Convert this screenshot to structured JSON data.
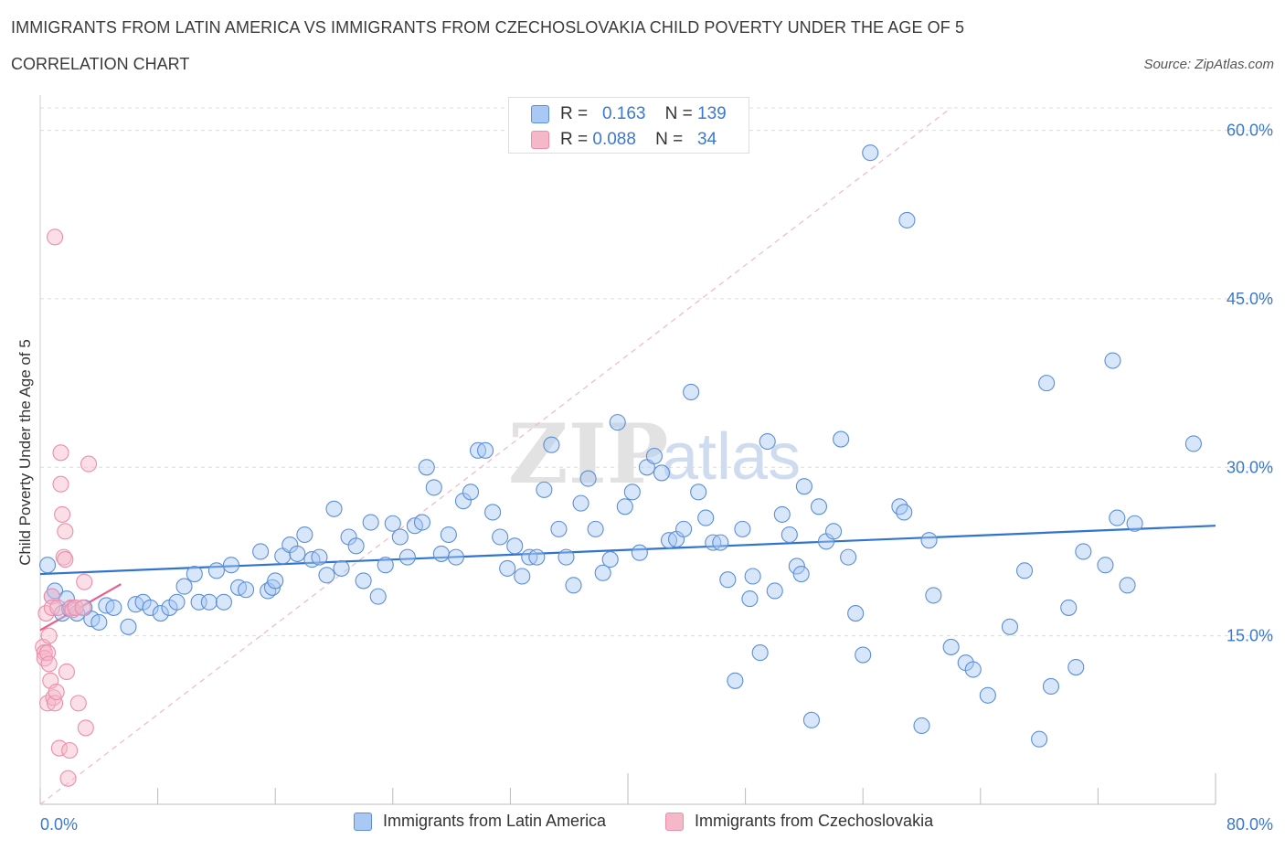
{
  "title": "IMMIGRANTS FROM LATIN AMERICA VS IMMIGRANTS FROM CZECHOSLOVAKIA CHILD POVERTY UNDER THE AGE OF 5",
  "subtitle": "CORRELATION CHART",
  "source": "Source: ZipAtlas.com",
  "watermark": {
    "zip": "ZIP",
    "atlas": "atlas"
  },
  "stats": [
    {
      "r_label": "R =",
      "r_value": "0.163",
      "n_label": "N =",
      "n_value": "139",
      "color": "#a9c8f3"
    },
    {
      "r_label": "R =",
      "r_value": "0.088",
      "n_label": "N =",
      "n_value": " 34",
      "color": "#f5b8c9"
    }
  ],
  "chart_data": {
    "type": "scatter",
    "ylabel": "Child Poverty Under the Age of 5",
    "xlim": [
      0,
      80
    ],
    "ylim": [
      0,
      62
    ],
    "x_tick_labels": [
      {
        "value": 0,
        "label": "0.0%"
      },
      {
        "value": 80,
        "label": "80.0%"
      }
    ],
    "y_tick_labels": [
      {
        "value": 15,
        "label": "15.0%"
      },
      {
        "value": 30,
        "label": "30.0%"
      },
      {
        "value": 45,
        "label": "45.0%"
      },
      {
        "value": 60,
        "label": "60.0%"
      }
    ],
    "grid": true,
    "legend_position": "bottom-center",
    "series": [
      {
        "name": "Immigrants from Latin America",
        "color": "#5b8fd8",
        "fill": "#a9c8f3",
        "trend": {
          "x": [
            0,
            80
          ],
          "y": [
            20.5,
            24.8
          ],
          "color": "#2f74d0"
        },
        "points": [
          [
            0.5,
            21.3
          ],
          [
            0.8,
            18.5
          ],
          [
            1.0,
            19.0
          ],
          [
            1.5,
            17.0
          ],
          [
            1.8,
            18.3
          ],
          [
            2.0,
            17.4
          ],
          [
            2.5,
            17.0
          ],
          [
            3.0,
            17.5
          ],
          [
            3.5,
            16.5
          ],
          [
            4.0,
            16.2
          ],
          [
            4.5,
            17.7
          ],
          [
            5.0,
            17.5
          ],
          [
            6.0,
            15.8
          ],
          [
            6.5,
            17.8
          ],
          [
            7.0,
            18.0
          ],
          [
            7.5,
            17.5
          ],
          [
            8.2,
            17.0
          ],
          [
            8.8,
            17.5
          ],
          [
            9.3,
            18.0
          ],
          [
            9.8,
            19.4
          ],
          [
            10.5,
            20.5
          ],
          [
            10.8,
            18.0
          ],
          [
            11.5,
            18.0
          ],
          [
            12.0,
            20.8
          ],
          [
            12.5,
            18.0
          ],
          [
            13.0,
            21.3
          ],
          [
            13.5,
            19.3
          ],
          [
            14.0,
            19.1
          ],
          [
            15.0,
            22.5
          ],
          [
            15.5,
            19.0
          ],
          [
            15.8,
            19.3
          ],
          [
            16.0,
            19.9
          ],
          [
            16.5,
            22.1
          ],
          [
            17.0,
            23.1
          ],
          [
            17.5,
            22.3
          ],
          [
            18.0,
            24.0
          ],
          [
            18.5,
            21.8
          ],
          [
            19.0,
            22.0
          ],
          [
            19.5,
            20.4
          ],
          [
            20.0,
            26.3
          ],
          [
            20.5,
            21.0
          ],
          [
            21.0,
            23.8
          ],
          [
            21.5,
            23.0
          ],
          [
            22.0,
            19.9
          ],
          [
            22.5,
            25.1
          ],
          [
            23.0,
            18.5
          ],
          [
            23.5,
            21.3
          ],
          [
            24.0,
            25.0
          ],
          [
            24.5,
            23.8
          ],
          [
            25.0,
            22.0
          ],
          [
            25.5,
            24.8
          ],
          [
            26.0,
            25.1
          ],
          [
            26.3,
            30.0
          ],
          [
            26.8,
            28.2
          ],
          [
            27.3,
            22.3
          ],
          [
            27.8,
            24.0
          ],
          [
            28.3,
            22.0
          ],
          [
            28.8,
            27.0
          ],
          [
            29.3,
            27.8
          ],
          [
            29.8,
            31.5
          ],
          [
            30.3,
            31.5
          ],
          [
            30.8,
            26.0
          ],
          [
            31.3,
            23.8
          ],
          [
            31.8,
            21.0
          ],
          [
            32.3,
            23.0
          ],
          [
            32.8,
            20.3
          ],
          [
            33.3,
            22.0
          ],
          [
            33.8,
            22.0
          ],
          [
            34.3,
            28.0
          ],
          [
            34.8,
            32.0
          ],
          [
            35.3,
            24.5
          ],
          [
            35.8,
            22.0
          ],
          [
            36.3,
            19.5
          ],
          [
            36.8,
            26.8
          ],
          [
            37.3,
            29.0
          ],
          [
            37.8,
            24.5
          ],
          [
            38.3,
            20.6
          ],
          [
            38.8,
            21.8
          ],
          [
            39.3,
            34.0
          ],
          [
            39.8,
            26.5
          ],
          [
            40.3,
            27.8
          ],
          [
            40.8,
            22.4
          ],
          [
            41.3,
            30.0
          ],
          [
            41.8,
            31.0
          ],
          [
            42.3,
            29.5
          ],
          [
            42.8,
            23.5
          ],
          [
            43.3,
            23.6
          ],
          [
            43.8,
            24.5
          ],
          [
            44.3,
            36.7
          ],
          [
            44.8,
            27.8
          ],
          [
            45.3,
            25.5
          ],
          [
            45.8,
            23.3
          ],
          [
            46.3,
            23.3
          ],
          [
            46.8,
            20.0
          ],
          [
            47.3,
            11.0
          ],
          [
            47.8,
            24.5
          ],
          [
            48.3,
            18.3
          ],
          [
            48.5,
            20.3
          ],
          [
            49.0,
            13.5
          ],
          [
            49.5,
            32.3
          ],
          [
            50.0,
            19.0
          ],
          [
            50.5,
            25.8
          ],
          [
            51.0,
            24.0
          ],
          [
            51.5,
            21.2
          ],
          [
            51.8,
            20.5
          ],
          [
            52.0,
            28.3
          ],
          [
            52.5,
            7.5
          ],
          [
            53.0,
            26.5
          ],
          [
            53.5,
            23.4
          ],
          [
            54.0,
            24.3
          ],
          [
            54.5,
            32.5
          ],
          [
            55.0,
            22.0
          ],
          [
            55.5,
            17.0
          ],
          [
            56.0,
            13.3
          ],
          [
            56.5,
            58.0
          ],
          [
            58.5,
            26.5
          ],
          [
            58.8,
            26.0
          ],
          [
            59.0,
            52.0
          ],
          [
            60.0,
            7.0
          ],
          [
            60.5,
            23.5
          ],
          [
            60.8,
            18.6
          ],
          [
            62.0,
            14.0
          ],
          [
            63.0,
            12.6
          ],
          [
            63.5,
            12.0
          ],
          [
            64.5,
            9.7
          ],
          [
            66.0,
            15.8
          ],
          [
            67.0,
            20.8
          ],
          [
            68.0,
            5.8
          ],
          [
            68.5,
            37.5
          ],
          [
            68.8,
            10.5
          ],
          [
            70.0,
            17.5
          ],
          [
            70.5,
            12.2
          ],
          [
            71.0,
            22.5
          ],
          [
            72.5,
            21.3
          ],
          [
            73.0,
            39.5
          ],
          [
            73.3,
            25.5
          ],
          [
            74.0,
            19.5
          ],
          [
            74.5,
            25.0
          ],
          [
            78.5,
            32.1
          ]
        ]
      },
      {
        "name": "Immigrants from Czechoslovakia",
        "color": "#ef8cab",
        "fill": "#f5b8c9",
        "trend": {
          "x": [
            0,
            5.5
          ],
          "y": [
            15.5,
            19.6
          ],
          "color": "#e8608d"
        },
        "points": [
          [
            0.2,
            14.0
          ],
          [
            0.3,
            13.5
          ],
          [
            0.3,
            13.0
          ],
          [
            0.4,
            17.0
          ],
          [
            0.5,
            13.5
          ],
          [
            0.5,
            9.0
          ],
          [
            0.6,
            15.0
          ],
          [
            0.6,
            12.5
          ],
          [
            0.7,
            11.0
          ],
          [
            0.8,
            18.5
          ],
          [
            0.8,
            17.5
          ],
          [
            0.9,
            9.5
          ],
          [
            1.0,
            50.5
          ],
          [
            1.0,
            9.0
          ],
          [
            1.1,
            10.0
          ],
          [
            1.2,
            17.5
          ],
          [
            1.3,
            5.0
          ],
          [
            1.4,
            28.5
          ],
          [
            1.4,
            31.3
          ],
          [
            1.5,
            25.8
          ],
          [
            1.6,
            22.0
          ],
          [
            1.7,
            24.3
          ],
          [
            1.7,
            21.8
          ],
          [
            1.8,
            11.8
          ],
          [
            1.9,
            2.3
          ],
          [
            2.0,
            4.8
          ],
          [
            2.1,
            17.5
          ],
          [
            2.2,
            17.3
          ],
          [
            2.4,
            17.5
          ],
          [
            2.6,
            9.0
          ],
          [
            2.9,
            17.5
          ],
          [
            3.0,
            19.8
          ],
          [
            3.1,
            6.8
          ],
          [
            3.3,
            30.3
          ]
        ]
      }
    ]
  }
}
